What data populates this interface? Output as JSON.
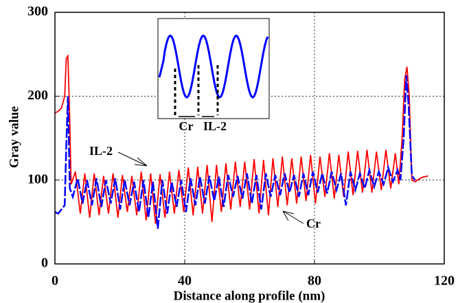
{
  "chart_data": {
    "type": "line",
    "xlabel": "Distance along profile (nm)",
    "ylabel": "Gray value",
    "xlim": [
      0,
      120
    ],
    "ylim": [
      0,
      300
    ],
    "xticks": [
      0,
      40,
      80,
      120
    ],
    "yticks": [
      0,
      100,
      200,
      300
    ],
    "grid": true,
    "annotations": [
      "IL-2",
      "Cr"
    ],
    "inset_labels": [
      "Cr",
      "IL-2"
    ],
    "series": [
      {
        "name": "IL-2",
        "color": "#ff0000",
        "x": [
          0,
          1,
          2,
          3,
          3.5,
          4,
          4.5,
          5,
          6.3,
          7.8,
          9.2,
          10.7,
          12.1,
          13.6,
          15.0,
          16.5,
          17.9,
          19.4,
          20.8,
          22.3,
          23.7,
          25.2,
          26.6,
          28.1,
          29.5,
          31.0,
          32.4,
          33.9,
          35.3,
          36.8,
          38.2,
          39.7,
          41.1,
          42.6,
          44.0,
          45.5,
          46.9,
          48.4,
          49.8,
          51.3,
          52.7,
          54.2,
          55.6,
          57.1,
          58.5,
          60.0,
          61.4,
          62.9,
          64.3,
          65.8,
          67.2,
          68.7,
          70.1,
          71.6,
          73.0,
          74.5,
          75.9,
          77.4,
          78.8,
          80.3,
          81.7,
          83.2,
          84.6,
          86.1,
          87.5,
          89.0,
          90.4,
          91.9,
          93.3,
          94.8,
          96.2,
          97.7,
          99.1,
          100.6,
          102.0,
          103.5,
          104.9,
          106.0,
          107,
          107.8,
          108.5,
          109.2,
          110,
          111,
          113,
          115
        ],
        "values": [
          180,
          182,
          186,
          200,
          245,
          248,
          180,
          95,
          110,
          60,
          108,
          55,
          108,
          58,
          105,
          60,
          108,
          55,
          106,
          62,
          105,
          58,
          110,
          52,
          108,
          48,
          107,
          55,
          110,
          60,
          112,
          62,
          115,
          58,
          116,
          60,
          118,
          50,
          118,
          62,
          120,
          65,
          122,
          68,
          122,
          65,
          125,
          60,
          124,
          58,
          126,
          68,
          128,
          70,
          126,
          72,
          128,
          75,
          130,
          72,
          128,
          80,
          132,
          78,
          130,
          80,
          134,
          82,
          135,
          85,
          136,
          85,
          134,
          88,
          136,
          90,
          132,
          95,
          150,
          220,
          235,
          200,
          100,
          98,
          103,
          105
        ]
      },
      {
        "name": "Cr",
        "color": "#0000ff",
        "x": [
          0,
          1,
          2,
          3,
          3.5,
          4,
          4.6,
          5.5,
          7.0,
          8.5,
          9.9,
          11.4,
          12.8,
          14.3,
          15.7,
          17.2,
          18.6,
          20.1,
          21.5,
          23.0,
          24.4,
          25.9,
          27.3,
          28.8,
          30.2,
          31.7,
          33.1,
          34.6,
          36.0,
          37.5,
          38.9,
          40.4,
          41.8,
          43.3,
          44.7,
          46.2,
          47.6,
          49.1,
          50.5,
          52.0,
          53.4,
          54.9,
          56.3,
          57.8,
          59.2,
          60.7,
          62.1,
          63.6,
          65.0,
          66.5,
          67.9,
          69.4,
          70.8,
          72.3,
          73.7,
          75.2,
          76.6,
          78.1,
          79.5,
          81.0,
          82.4,
          83.9,
          85.3,
          86.8,
          88.2,
          89.7,
          91.1,
          92.6,
          94.0,
          95.5,
          96.9,
          98.4,
          99.8,
          101.3,
          102.7,
          104.2,
          105.6,
          106.5,
          107.5,
          108.3,
          109,
          110,
          111
        ],
        "values": [
          62,
          60,
          65,
          70,
          140,
          200,
          90,
          80,
          102,
          72,
          100,
          70,
          102,
          68,
          100,
          72,
          102,
          65,
          100,
          70,
          98,
          62,
          100,
          55,
          98,
          42,
          100,
          60,
          98,
          68,
          100,
          62,
          102,
          70,
          104,
          72,
          105,
          75,
          104,
          68,
          106,
          80,
          105,
          78,
          108,
          72,
          106,
          65,
          108,
          80,
          106,
          82,
          108,
          85,
          106,
          80,
          108,
          82,
          110,
          85,
          108,
          84,
          110,
          88,
          108,
          70,
          110,
          88,
          108,
          90,
          112,
          92,
          110,
          95,
          115,
          98,
          112,
          100,
          150,
          225,
          190,
          105,
          100
        ]
      }
    ]
  }
}
